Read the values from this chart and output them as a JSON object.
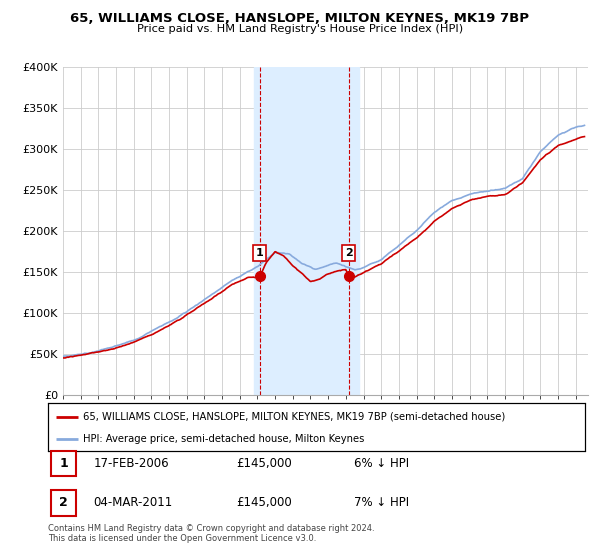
{
  "title1": "65, WILLIAMS CLOSE, HANSLOPE, MILTON KEYNES, MK19 7BP",
  "title2": "Price paid vs. HM Land Registry's House Price Index (HPI)",
  "legend_line1": "65, WILLIAMS CLOSE, HANSLOPE, MILTON KEYNES, MK19 7BP (semi-detached house)",
  "legend_line2": "HPI: Average price, semi-detached house, Milton Keynes",
  "sale1_label": "1",
  "sale1_date": "17-FEB-2006",
  "sale1_price": "£145,000",
  "sale1_hpi": "6% ↓ HPI",
  "sale2_label": "2",
  "sale2_date": "04-MAR-2011",
  "sale2_price": "£145,000",
  "sale2_hpi": "7% ↓ HPI",
  "footer": "Contains HM Land Registry data © Crown copyright and database right 2024.\nThis data is licensed under the Open Government Licence v3.0.",
  "property_color": "#cc0000",
  "hpi_color": "#88aadd",
  "highlight_color": "#ddeeff",
  "sale_marker_color": "#cc0000",
  "ylim": [
    0,
    400000
  ],
  "yticks": [
    0,
    50000,
    100000,
    150000,
    200000,
    250000,
    300000,
    350000,
    400000
  ],
  "ylabel_fmt": [
    "£0",
    "£50K",
    "£100K",
    "£150K",
    "£200K",
    "£250K",
    "£300K",
    "£350K",
    "£400K"
  ],
  "sale1_x": 2006.12,
  "sale1_y": 145000,
  "sale2_x": 2011.17,
  "sale2_y": 145000,
  "highlight_x1": 2005.8,
  "highlight_x2": 2011.75,
  "xmin": 1995,
  "xmax": 2024.7
}
